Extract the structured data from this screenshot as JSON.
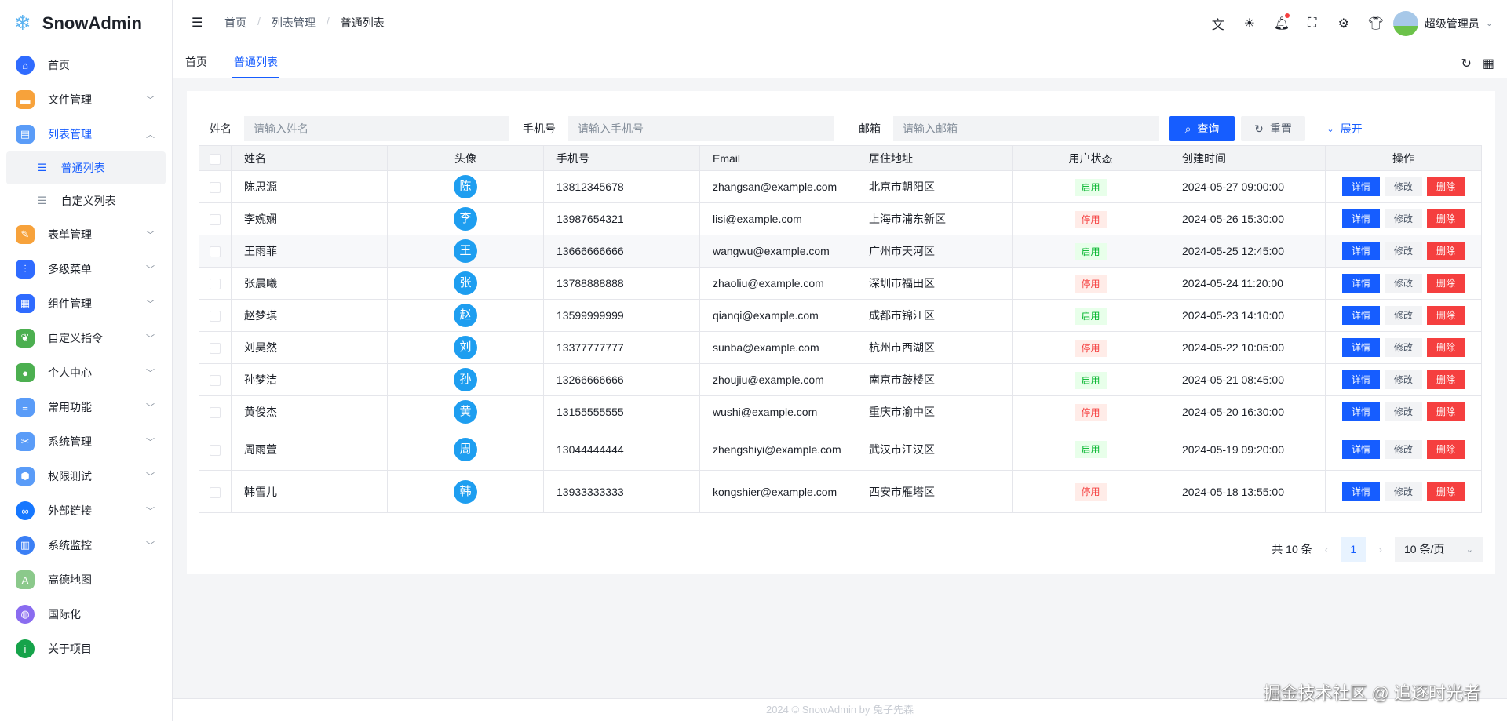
{
  "app": {
    "name": "SnowAdmin"
  },
  "sidebar": {
    "items": [
      {
        "label": "首页",
        "icon": "home-icon",
        "color": "#2f6bff"
      },
      {
        "label": "文件管理",
        "icon": "folder-icon",
        "color": "#f7a23b"
      },
      {
        "label": "列表管理",
        "icon": "clipboard-icon",
        "color": "#5a9cf8",
        "expanded": true,
        "children": [
          {
            "label": "普通列表",
            "selected": true
          },
          {
            "label": "自定义列表"
          }
        ]
      },
      {
        "label": "表单管理",
        "icon": "form-icon",
        "color": "#f7a23b"
      },
      {
        "label": "多级菜单",
        "icon": "sliders-icon",
        "color": "#2f6bff"
      },
      {
        "label": "组件管理",
        "icon": "apps-icon",
        "color": "#2f6bff"
      },
      {
        "label": "自定义指令",
        "icon": "leaf-icon",
        "color": "#4caf50"
      },
      {
        "label": "个人中心",
        "icon": "user-icon",
        "color": "#4caf50"
      },
      {
        "label": "常用功能",
        "icon": "server-icon",
        "color": "#5a9cf8"
      },
      {
        "label": "系统管理",
        "icon": "tools-icon",
        "color": "#5a9cf8"
      },
      {
        "label": "权限测试",
        "icon": "shield-icon",
        "color": "#5a9cf8"
      },
      {
        "label": "外部链接",
        "icon": "link-icon",
        "color": "#1677ff"
      },
      {
        "label": "系统监控",
        "icon": "monitor-icon",
        "color": "#3b7ff5"
      },
      {
        "label": "高德地图",
        "icon": "map-icon",
        "color": "#8bc98b"
      },
      {
        "label": "国际化",
        "icon": "planet-icon",
        "color": "#8a6cf0"
      },
      {
        "label": "关于项目",
        "icon": "info-icon",
        "color": "#16a34a"
      }
    ]
  },
  "header": {
    "breadcrumb": [
      "首页",
      "列表管理",
      "普通列表"
    ],
    "user": "超级管理员"
  },
  "tabs": [
    {
      "label": "首页"
    },
    {
      "label": "普通列表",
      "active": true
    }
  ],
  "search": {
    "name_label": "姓名",
    "name_placeholder": "请输入姓名",
    "phone_label": "手机号",
    "phone_placeholder": "请输入手机号",
    "email_label": "邮箱",
    "email_placeholder": "请输入邮箱",
    "query": "查询",
    "reset": "重置",
    "expand": "展开"
  },
  "table": {
    "columns": [
      "姓名",
      "头像",
      "手机号",
      "Email",
      "居住地址",
      "用户状态",
      "创建时间",
      "操作"
    ],
    "actions": {
      "detail": "详情",
      "edit": "修改",
      "delete": "删除"
    },
    "rows": [
      {
        "name": "陈思源",
        "avatar": "陈",
        "phone": "13812345678",
        "email": "zhangsan@example.com",
        "address": "北京市朝阳区",
        "status": "启用",
        "created": "2024-05-27 09:00:00"
      },
      {
        "name": "李婉娴",
        "avatar": "李",
        "phone": "13987654321",
        "email": "lisi@example.com",
        "address": "上海市浦东新区",
        "status": "停用",
        "created": "2024-05-26 15:30:00"
      },
      {
        "name": "王雨菲",
        "avatar": "王",
        "phone": "13666666666",
        "email": "wangwu@example.com",
        "address": "广州市天河区",
        "status": "启用",
        "created": "2024-05-25 12:45:00"
      },
      {
        "name": "张晨曦",
        "avatar": "张",
        "phone": "13788888888",
        "email": "zhaoliu@example.com",
        "address": "深圳市福田区",
        "status": "停用",
        "created": "2024-05-24 11:20:00"
      },
      {
        "name": "赵梦琪",
        "avatar": "赵",
        "phone": "13599999999",
        "email": "qianqi@example.com",
        "address": "成都市锦江区",
        "status": "启用",
        "created": "2024-05-23 14:10:00"
      },
      {
        "name": "刘昊然",
        "avatar": "刘",
        "phone": "13377777777",
        "email": "sunba@example.com",
        "address": "杭州市西湖区",
        "status": "停用",
        "created": "2024-05-22 10:05:00"
      },
      {
        "name": "孙梦洁",
        "avatar": "孙",
        "phone": "13266666666",
        "email": "zhoujiu@example.com",
        "address": "南京市鼓楼区",
        "status": "启用",
        "created": "2024-05-21 08:45:00"
      },
      {
        "name": "黄俊杰",
        "avatar": "黄",
        "phone": "13155555555",
        "email": "wushi@example.com",
        "address": "重庆市渝中区",
        "status": "停用",
        "created": "2024-05-20 16:30:00"
      },
      {
        "name": "周雨萱",
        "avatar": "周",
        "phone": "13044444444",
        "email": "zhengshiyi@example.com",
        "address": "武汉市江汉区",
        "status": "启用",
        "created": "2024-05-19 09:20:00"
      },
      {
        "name": "韩雪儿",
        "avatar": "韩",
        "phone": "13933333333",
        "email": "kongshier@example.com",
        "address": "西安市雁塔区",
        "status": "停用",
        "created": "2024-05-18 13:55:00"
      }
    ]
  },
  "pagination": {
    "total": "共 10 条",
    "current": "1",
    "page_size": "10 条/页"
  },
  "footer": "2024 © SnowAdmin by 兔子先森",
  "watermark": "掘金技术社区 @ 追逐时光者"
}
